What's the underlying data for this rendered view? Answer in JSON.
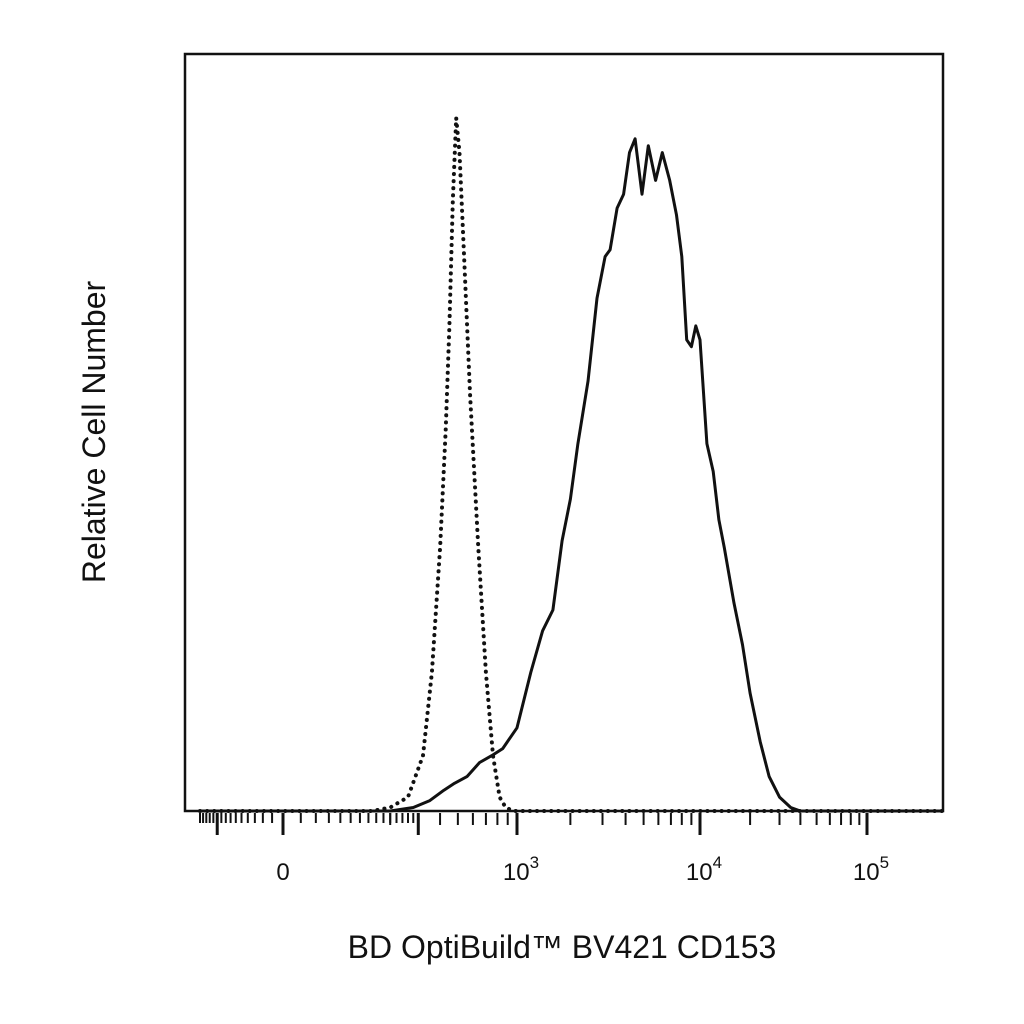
{
  "chart_data": {
    "type": "line",
    "title": "",
    "xlabel": "BD OptiBuild™ BV421 CD153",
    "ylabel": "Relative Cell Number",
    "x_scale": "biexponential",
    "xlim": [
      -300,
      200000
    ],
    "ylim": [
      0,
      100
    ],
    "grid": false,
    "legend": "none",
    "x_ticks": [
      {
        "value": 0,
        "base": "0",
        "exp": ""
      },
      {
        "value": 1000,
        "base": "10",
        "exp": "3"
      },
      {
        "value": 10000,
        "base": "10",
        "exp": "4"
      },
      {
        "value": 100000,
        "base": "10",
        "exp": "5"
      }
    ],
    "series": [
      {
        "style": "dotted",
        "color": "#111111",
        "x": [
          -300,
          50,
          150,
          200,
          260,
          320,
          360,
          400,
          430,
          450,
          470,
          490,
          510,
          540,
          580,
          640,
          700,
          760,
          820,
          880,
          960,
          1100,
          1500,
          3000,
          10000,
          50000,
          200000
        ],
        "y": [
          0,
          0,
          0,
          0.5,
          2,
          8,
          20,
          38,
          55,
          70,
          88,
          100,
          95,
          80,
          60,
          38,
          20,
          8,
          2,
          0.5,
          0,
          0,
          0,
          0,
          0,
          0,
          0
        ]
      },
      {
        "style": "solid",
        "color": "#111111",
        "x": [
          -300,
          100,
          200,
          280,
          350,
          420,
          480,
          560,
          650,
          750,
          850,
          1000,
          1200,
          1400,
          1600,
          1800,
          2000,
          2200,
          2500,
          2800,
          3100,
          3300,
          3600,
          3900,
          4200,
          4500,
          4900,
          5300,
          5800,
          6300,
          6900,
          7500,
          8000,
          8500,
          9000,
          9500,
          10000,
          11000,
          12000,
          13000,
          14000,
          16000,
          18000,
          20000,
          23000,
          26000,
          30000,
          35000,
          40000,
          45000,
          50000,
          55000,
          60000,
          80000,
          200000
        ],
        "y": [
          0,
          0,
          0,
          0.5,
          1.5,
          3,
          4,
          5,
          7,
          8,
          9,
          12,
          20,
          26,
          29,
          39,
          45,
          53,
          62,
          74,
          80,
          81,
          87,
          89,
          95,
          97,
          89,
          96,
          91,
          95,
          91,
          86,
          80,
          68,
          67,
          70,
          68,
          53,
          49,
          42,
          38,
          30,
          24,
          17,
          10,
          5,
          2,
          0.5,
          0,
          0,
          0,
          0,
          0,
          0,
          0
        ]
      }
    ]
  }
}
